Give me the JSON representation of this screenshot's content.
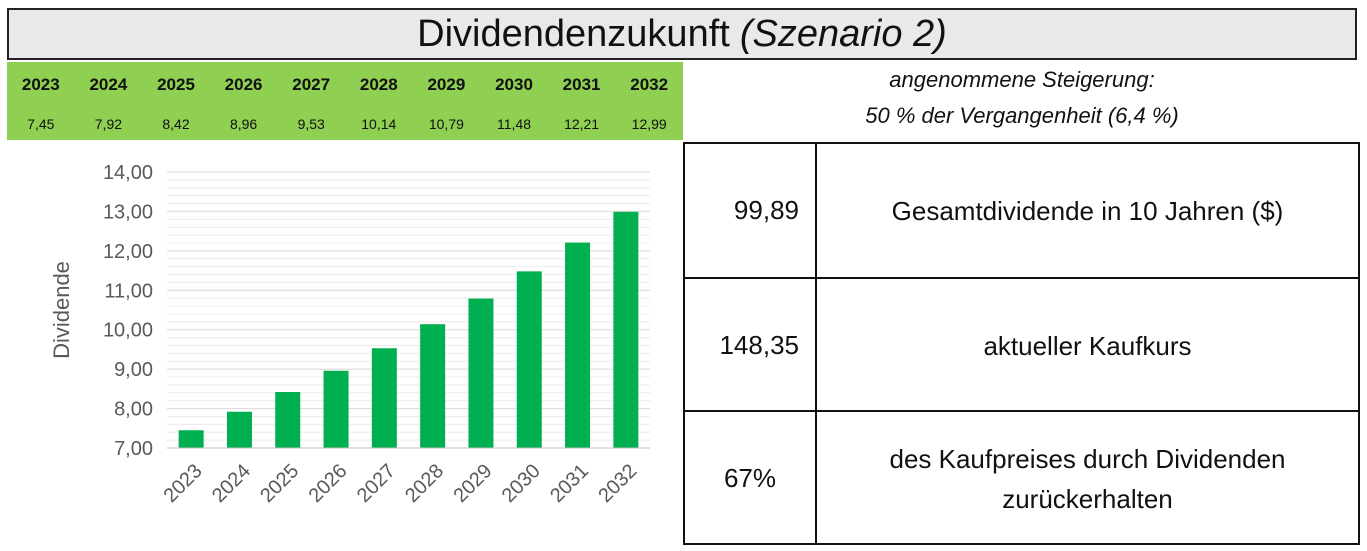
{
  "header": {
    "title_main": "Dividendenzukunft",
    "title_italic": "(Szenario 2)"
  },
  "table": {
    "years": [
      "2023",
      "2024",
      "2025",
      "2026",
      "2027",
      "2028",
      "2029",
      "2030",
      "2031",
      "2032"
    ],
    "values": [
      "7,45",
      "7,92",
      "8,42",
      "8,96",
      "9,53",
      "10,14",
      "10,79",
      "11,48",
      "12,21",
      "12,99"
    ]
  },
  "assumption": {
    "line1": "angenommene Steigerung:",
    "line2": "50 % der Vergangenheit (6,4 %)"
  },
  "summary": {
    "total_value": "99,89",
    "total_label": "Gesamtdividende in 10 Jahren ($)",
    "price_value": "148,35",
    "price_label": "aktueller Kaufkurs",
    "pct_value": "67%",
    "pct_label_line1": "des Kaufpreises durch Dividenden",
    "pct_label_line2": "zurückerhalten"
  },
  "colors": {
    "bar": "#00b050",
    "table_bg": "#8fcf52",
    "title_bg": "#e9e9e9"
  },
  "chart_data": {
    "type": "bar",
    "title": "",
    "xlabel": "",
    "ylabel": "Dividende",
    "categories": [
      "2023",
      "2024",
      "2025",
      "2026",
      "2027",
      "2028",
      "2029",
      "2030",
      "2031",
      "2032"
    ],
    "values": [
      7.45,
      7.92,
      8.42,
      8.96,
      9.53,
      10.14,
      10.79,
      11.48,
      12.21,
      12.99
    ],
    "ylim": [
      7,
      14
    ],
    "yticks": [
      "7,00",
      "8,00",
      "9,00",
      "10,00",
      "11,00",
      "12,00",
      "13,00",
      "14,00"
    ],
    "grid": true
  }
}
